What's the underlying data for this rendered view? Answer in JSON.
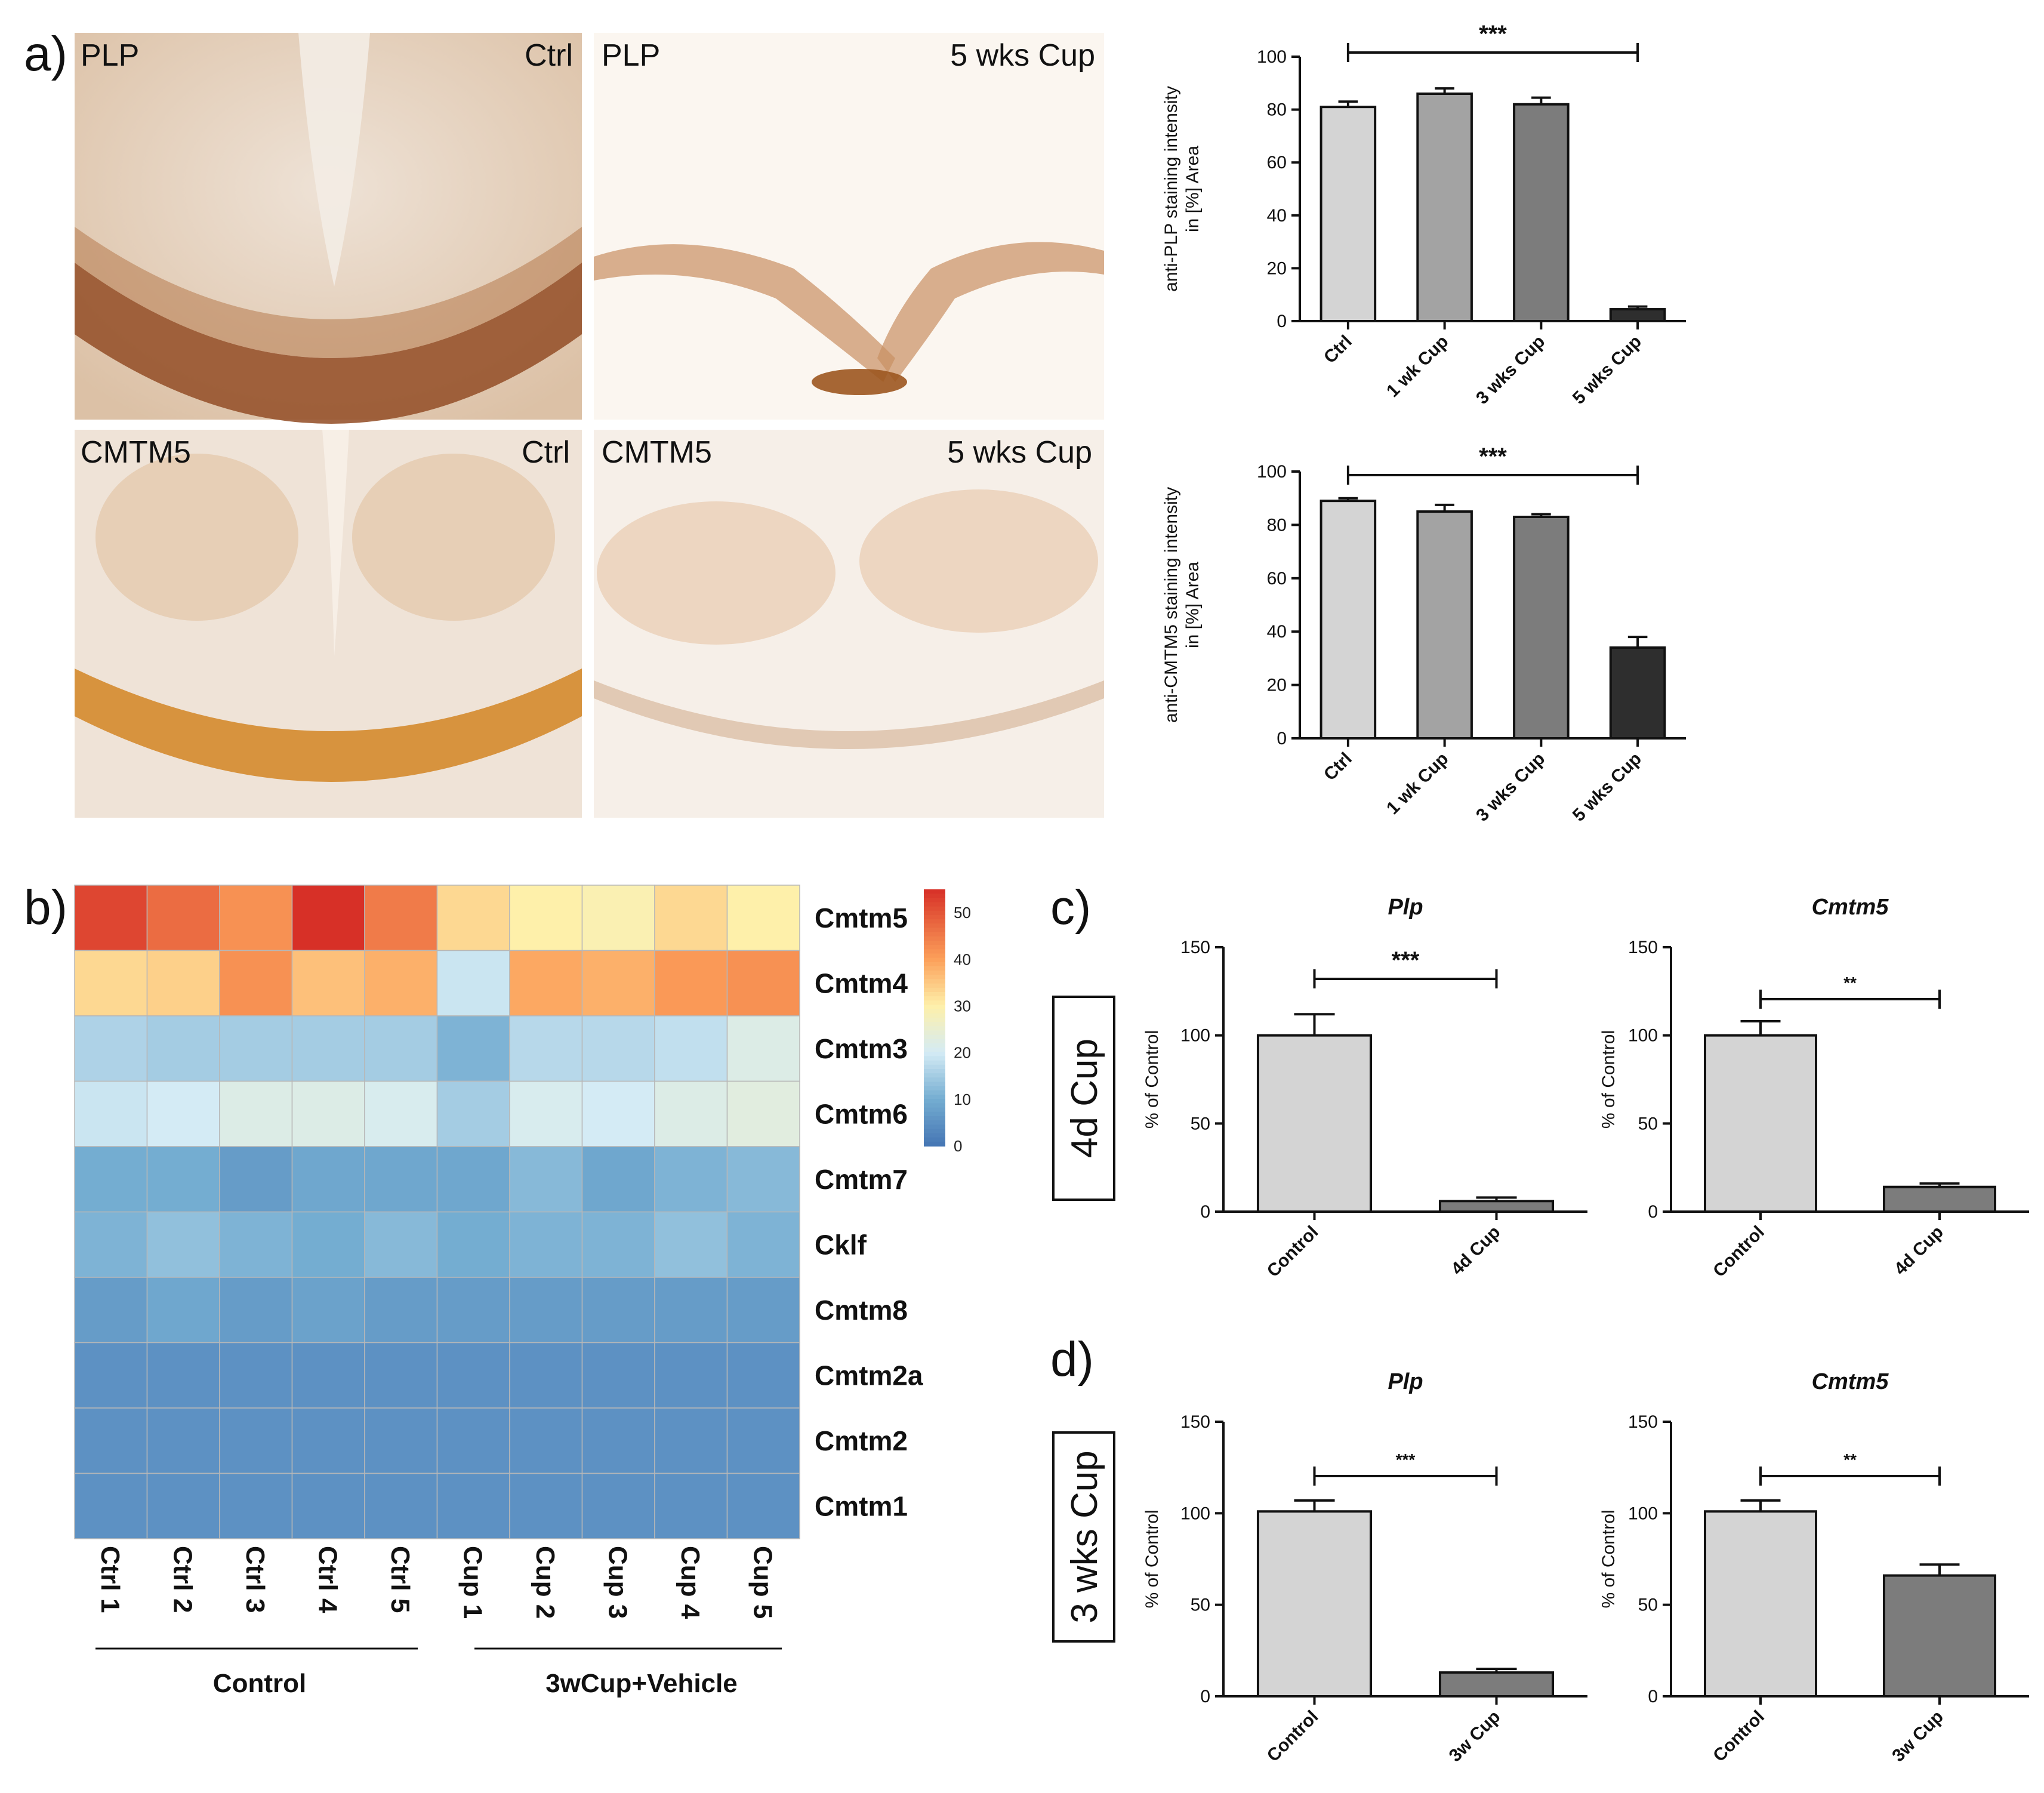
{
  "panels": {
    "a": "a)",
    "b": "b)",
    "c": "c)",
    "d": "d)"
  },
  "micrographs": [
    {
      "stain": "PLP",
      "condition": "Ctrl"
    },
    {
      "stain": "PLP",
      "condition": "5 wks Cup"
    },
    {
      "stain": "CMTM5",
      "condition": "Ctrl"
    },
    {
      "stain": "CMTM5",
      "condition": "5 wks Cup"
    }
  ],
  "boxed_labels": {
    "c": "4d Cup",
    "d": "3 wks Cup"
  },
  "heatmap": {
    "rows": [
      "Cmtm5",
      "Cmtm4",
      "Cmtm3",
      "Cmtm6",
      "Cmtm7",
      "Cklf",
      "Cmtm8",
      "Cmtm2a",
      "Cmtm2",
      "Cmtm1"
    ],
    "columns": [
      "Ctrl 1",
      "Ctrl 2",
      "Ctrl 3",
      "Ctrl 4",
      "Ctrl 5",
      "Cup 1",
      "Cup 2",
      "Cup 3",
      "Cup 4",
      "Cup 5"
    ],
    "groups": [
      "Control",
      "3wCup+Vehicle"
    ],
    "legend_ticks": [
      "50",
      "40",
      "30",
      "20",
      "10",
      "0"
    ]
  },
  "colors": {
    "bar_light": "#d4d4d4",
    "bar_mid": "#a3a3a3",
    "bar_dark": "#7c7c7c",
    "bar_black": "#2e2e2e"
  },
  "chart_data": [
    {
      "id": "plp",
      "type": "bar",
      "title": "",
      "categories": [
        "Ctrl",
        "1 wk Cup",
        "3 wks Cup",
        "5 wks Cup"
      ],
      "values": [
        81,
        86,
        82,
        4.5
      ],
      "errors": [
        2,
        2,
        2.5,
        1
      ],
      "ylabel": "anti-PLP staining intensity in [%] Area",
      "ylabel_lines": [
        "anti-PLP staining intensity",
        "in [%] Area"
      ],
      "ylim": [
        0,
        100
      ],
      "yticks": [
        0,
        20,
        40,
        60,
        80,
        100
      ],
      "significance": {
        "from": "Ctrl",
        "to": "5 wks Cup",
        "label": "***"
      }
    },
    {
      "id": "cmtm5",
      "type": "bar",
      "title": "",
      "categories": [
        "Ctrl",
        "1 wk Cup",
        "3 wks Cup",
        "5 wks Cup"
      ],
      "values": [
        89,
        85,
        83,
        34
      ],
      "errors": [
        1,
        2.5,
        1,
        4
      ],
      "ylabel": "anti-CMTM5 staining intensity in [%] Area",
      "ylabel_lines": [
        "anti-CMTM5 staining intensity",
        "in [%] Area"
      ],
      "ylim": [
        0,
        100
      ],
      "yticks": [
        0,
        20,
        40,
        60,
        80,
        100
      ],
      "significance": {
        "from": "Ctrl",
        "to": "5 wks Cup",
        "label": "***"
      }
    },
    {
      "id": "heatmap",
      "type": "heatmap",
      "title": "",
      "rows": [
        "Cmtm5",
        "Cmtm4",
        "Cmtm3",
        "Cmtm6",
        "Cmtm7",
        "Cklf",
        "Cmtm8",
        "Cmtm2a",
        "Cmtm2",
        "Cmtm1"
      ],
      "columns": [
        "Ctrl 1",
        "Ctrl 2",
        "Ctrl 3",
        "Ctrl 4",
        "Ctrl 5",
        "Cup 1",
        "Cup 2",
        "Cup 3",
        "Cup 4",
        "Cup 5"
      ],
      "values": [
        [
          52,
          47,
          42,
          55,
          45,
          33,
          30,
          29,
          33,
          30
        ],
        [
          33,
          34,
          42,
          36,
          38,
          19,
          39,
          38,
          41,
          42
        ],
        [
          16,
          15,
          15,
          15,
          15,
          11,
          17,
          17,
          18,
          22
        ],
        [
          19,
          20,
          22,
          22,
          21,
          15,
          21,
          20,
          22,
          23
        ],
        [
          10,
          10,
          7,
          9,
          9,
          9,
          12,
          9,
          11,
          12
        ],
        [
          11,
          13,
          11,
          10,
          12,
          10,
          11,
          11,
          13,
          11
        ],
        [
          7,
          9,
          7,
          8,
          7,
          7,
          7,
          7,
          7,
          7
        ],
        [
          5,
          5,
          5,
          5,
          5,
          5,
          5,
          5,
          5,
          5
        ],
        [
          5,
          5,
          5,
          5,
          5,
          5,
          5,
          5,
          5,
          5
        ],
        [
          5,
          5,
          5,
          5,
          5,
          5,
          5,
          5,
          5,
          5
        ]
      ],
      "scale": [
        0,
        55
      ],
      "legend_ticks": [
        0,
        10,
        20,
        30,
        40,
        50
      ]
    },
    {
      "id": "c-plp",
      "type": "bar",
      "title": "Plp",
      "categories": [
        "Control",
        "4d Cup"
      ],
      "values": [
        100,
        6
      ],
      "errors": [
        12,
        2
      ],
      "ylabel": "% of Control",
      "ylim": [
        0,
        150
      ],
      "yticks": [
        0,
        50,
        100,
        150
      ],
      "significance": {
        "from": "Control",
        "to": "4d Cup",
        "label": "***"
      }
    },
    {
      "id": "c-cmtm5",
      "type": "bar",
      "title": "Cmtm5",
      "categories": [
        "Control",
        "4d Cup"
      ],
      "values": [
        100,
        14
      ],
      "errors": [
        8,
        2
      ],
      "ylabel": "% of Control",
      "ylim": [
        0,
        150
      ],
      "yticks": [
        0,
        50,
        100,
        150
      ],
      "significance": {
        "from": "Control",
        "to": "4d Cup",
        "label": "**"
      }
    },
    {
      "id": "d-plp",
      "type": "bar",
      "title": "Plp",
      "categories": [
        "Control",
        "3w Cup"
      ],
      "values": [
        101,
        13
      ],
      "errors": [
        6,
        2
      ],
      "ylabel": "% of Control",
      "ylim": [
        0,
        150
      ],
      "yticks": [
        0,
        50,
        100,
        150
      ],
      "significance": {
        "from": "Control",
        "to": "3w Cup",
        "label": "***"
      }
    },
    {
      "id": "d-cmtm5",
      "type": "bar",
      "title": "Cmtm5",
      "categories": [
        "Control",
        "3w Cup"
      ],
      "values": [
        101,
        66
      ],
      "errors": [
        6,
        6
      ],
      "ylabel": "% of Control",
      "ylim": [
        0,
        150
      ],
      "yticks": [
        0,
        50,
        100,
        150
      ],
      "significance": {
        "from": "Control",
        "to": "3w Cup",
        "label": "**"
      }
    }
  ]
}
